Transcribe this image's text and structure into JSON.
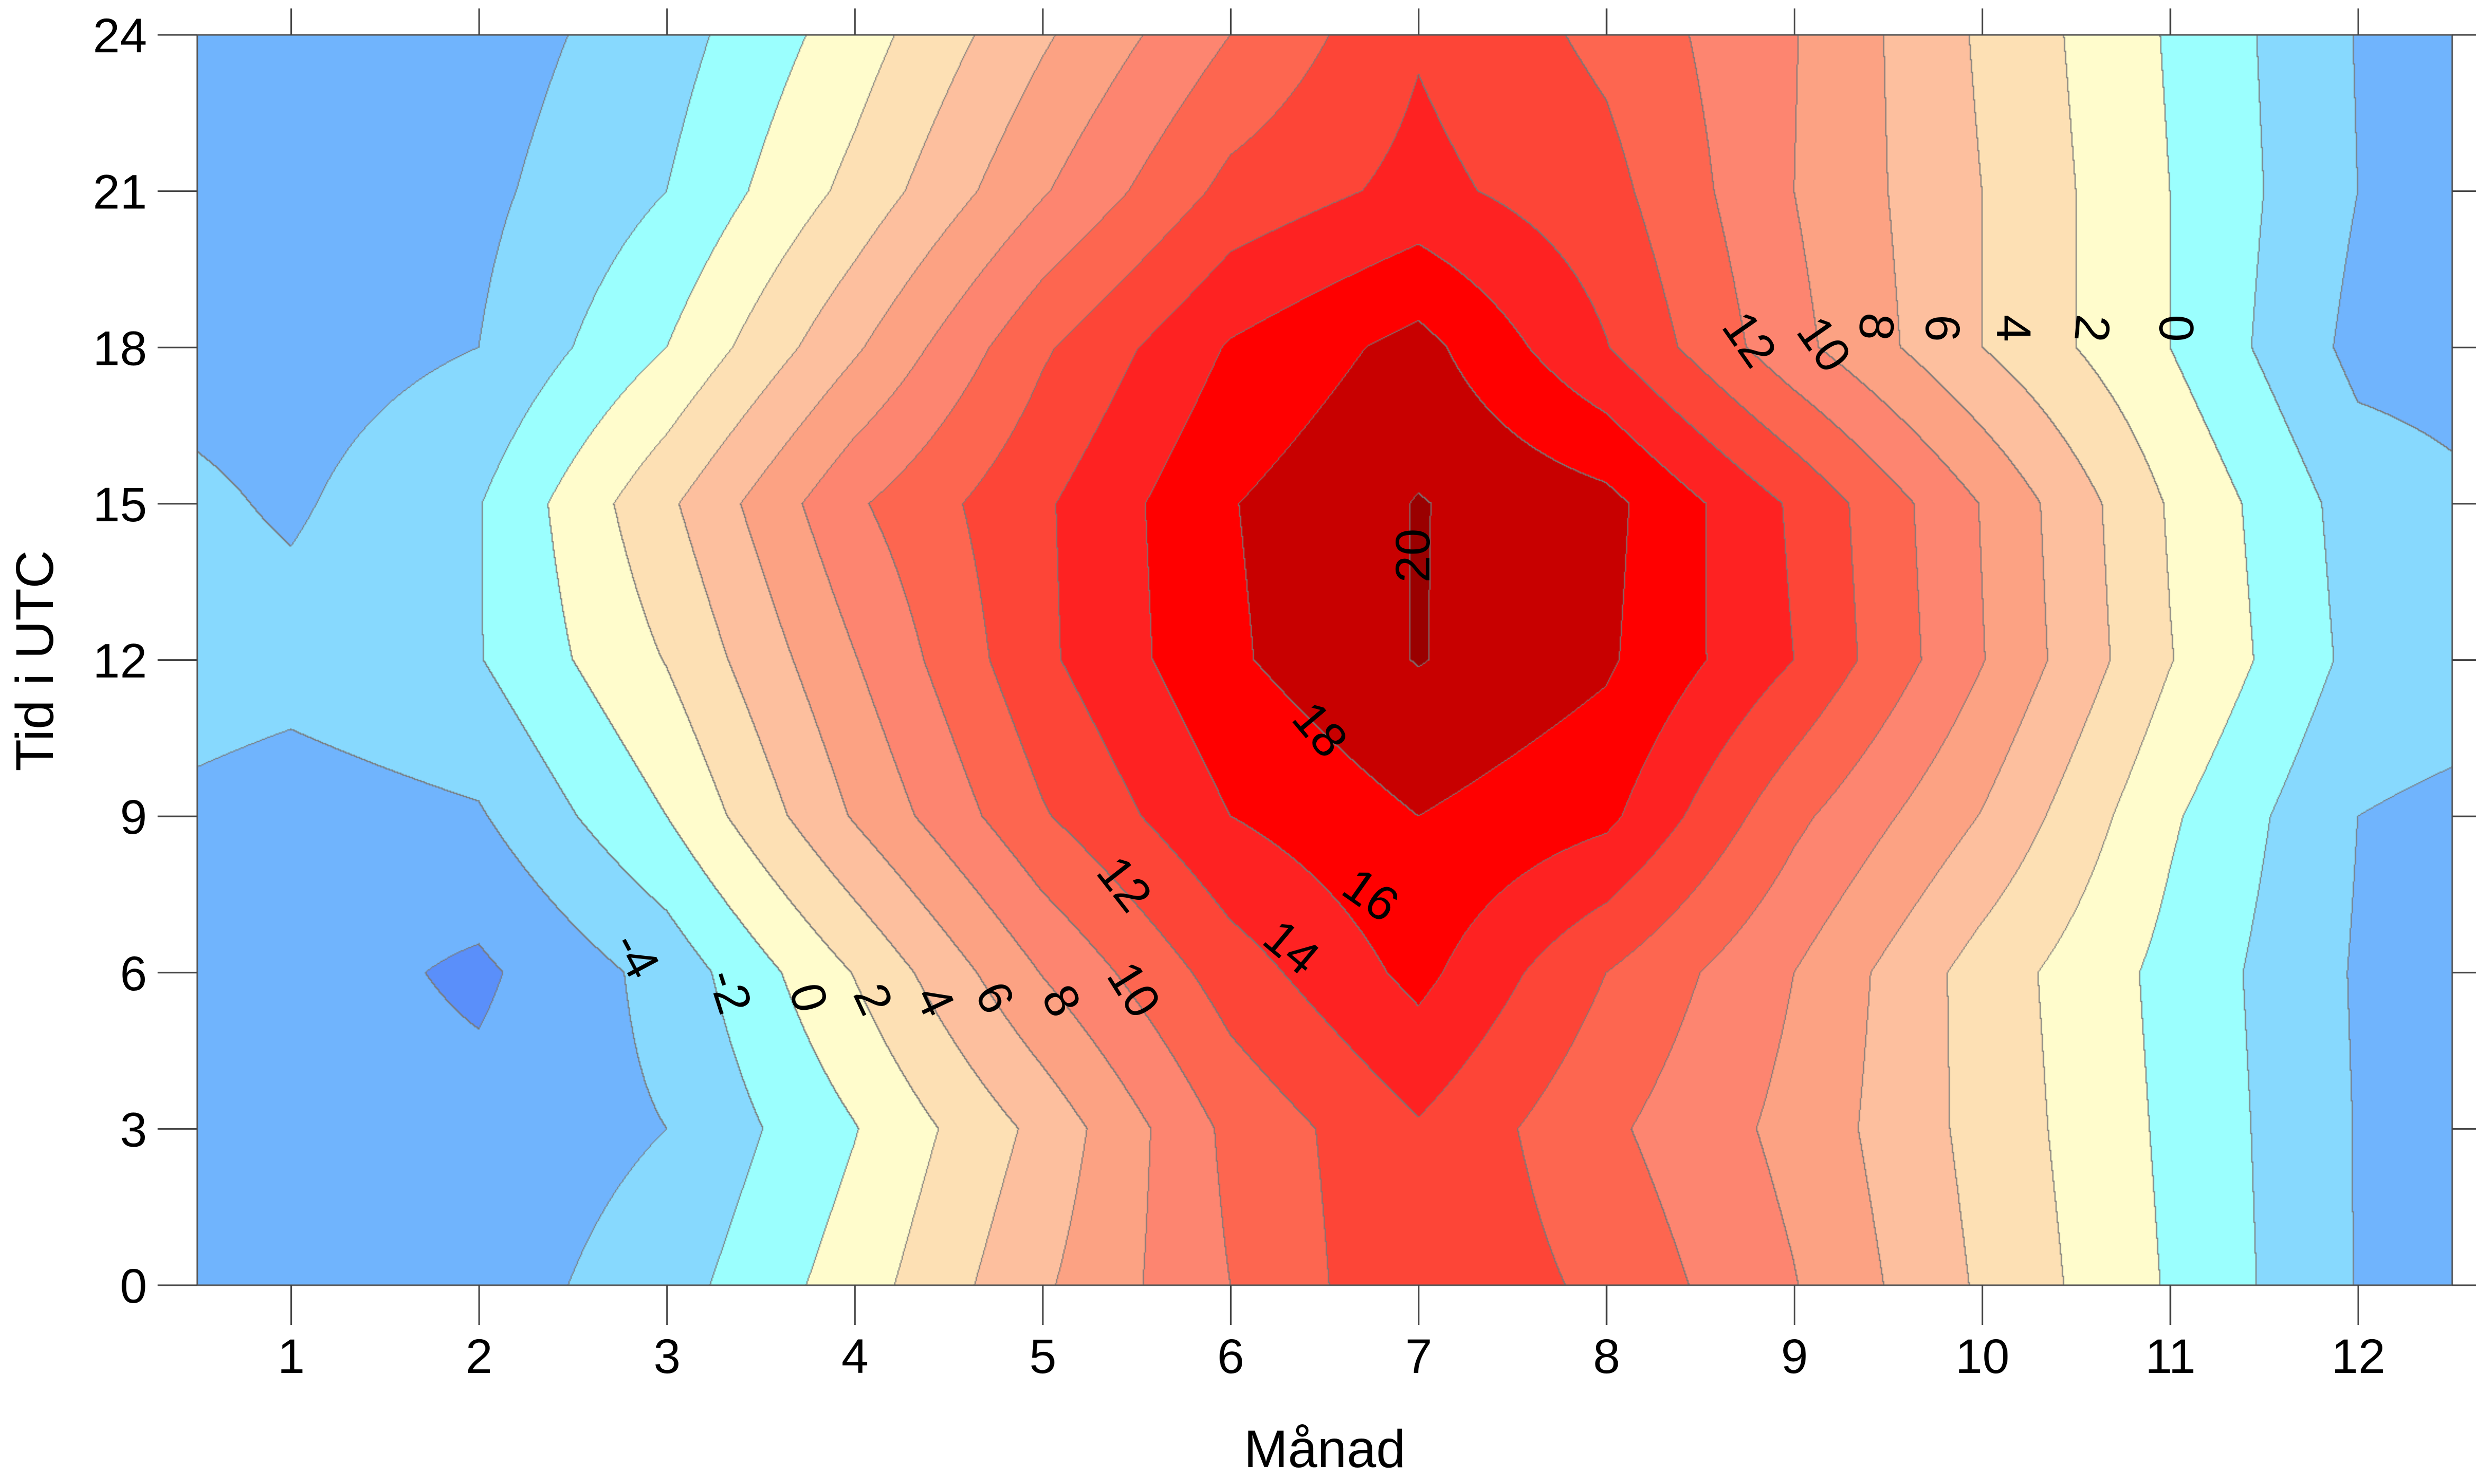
{
  "chart_data": {
    "type": "contour",
    "title": "",
    "xlabel": "Månad",
    "ylabel": "Tid i UTC",
    "xlim": [
      0.5,
      12.5
    ],
    "ylim": [
      0,
      24
    ],
    "xticks": [
      "1",
      "2",
      "3",
      "4",
      "5",
      "6",
      "7",
      "8",
      "9",
      "10",
      "11",
      "12"
    ],
    "yticks": [
      "0",
      "3",
      "6",
      "9",
      "12",
      "15",
      "18",
      "21",
      "24"
    ],
    "x": [
      1,
      2,
      3,
      4,
      5,
      6,
      7,
      8,
      9,
      10,
      11,
      12
    ],
    "y": [
      0,
      3,
      6,
      9,
      12,
      15,
      18,
      21,
      24
    ],
    "z_by_month": [
      [
        -5.0,
        -5.0,
        -5.0,
        -5.0,
        -3.2,
        -4.3,
        -5.0,
        -5.0,
        -5.0
      ],
      [
        -5.0,
        -5.3,
        -6.4,
        -4.2,
        -2.1,
        -2.1,
        -4.0,
        -4.5,
        -5.0
      ],
      [
        -2.9,
        -4.0,
        -3.3,
        0.0,
        2.1,
        3.6,
        0.0,
        -2.0,
        -2.9
      ],
      [
        1.0,
        -0.1,
        2.1,
        6.2,
        7.9,
        9.7,
        5.7,
        2.6,
        1.0
      ],
      [
        5.7,
        4.6,
        8.1,
        11.8,
        13.6,
        13.7,
        11.7,
        7.8,
        5.7
      ],
      [
        10.0,
        10.5,
        13.0,
        16.0,
        17.7,
        17.9,
        16.2,
        12.6,
        10.0
      ],
      [
        13.8,
        13.8,
        16.6,
        18.0,
        20.1,
        20.1,
        18.7,
        14.6,
        13.8
      ],
      [
        11.5,
        10.4,
        12.0,
        16.5,
        18.3,
        18.6,
        14.1,
        12.7,
        11.5
      ],
      [
        8.1,
        7.4,
        8.0,
        10.5,
        14.0,
        13.7,
        8.6,
        8.0,
        8.1
      ],
      [
        3.7,
        3.3,
        3.1,
        5.9,
        8.1,
        7.9,
        4.0,
        4.0,
        3.7
      ],
      [
        -0.2,
        -0.4,
        -0.6,
        0.3,
        2.1,
        1.8,
        0.0,
        0.0,
        -0.2
      ],
      [
        -4.1,
        -4.1,
        -4.2,
        -4.0,
        -2.6,
        -2.9,
        -4.6,
        -4.0,
        -4.1
      ]
    ],
    "levels": [
      -6,
      -4,
      -2,
      0,
      2,
      4,
      6,
      8,
      10,
      12,
      14,
      16,
      18,
      20
    ],
    "colors": [
      "#5a8ffa",
      "#70b4fd",
      "#87d9fe",
      "#9bfffe",
      "#fffccc",
      "#fde0b4",
      "#fdbf9e",
      "#fca283",
      "#fd8570",
      "#fd6650",
      "#fd4537",
      "#fe2222",
      "#ff0000",
      "#c80000",
      "#9a0000"
    ],
    "contour_labels": [
      "-4",
      "-2",
      "0",
      "2",
      "4",
      "6",
      "8",
      "10",
      "12",
      "14",
      "16",
      "18",
      "20",
      "12",
      "10",
      "8",
      "6",
      "4",
      "2",
      "0"
    ],
    "grid": false,
    "legend": "none"
  }
}
